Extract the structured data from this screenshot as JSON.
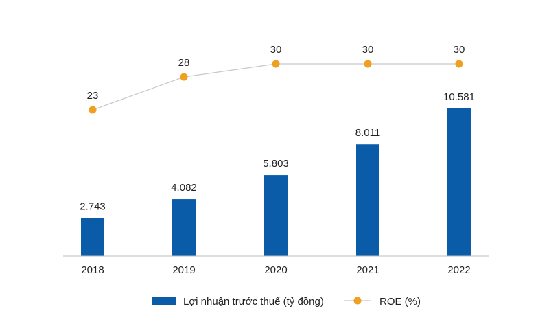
{
  "chart_data": {
    "type": "bar+line",
    "categories": [
      "2018",
      "2019",
      "2020",
      "2021",
      "2022"
    ],
    "series": [
      {
        "name": "Lợi nhuận trước thuế (tỷ đồng)",
        "type": "bar",
        "values": [
          2743,
          4082,
          5803,
          8011,
          10581
        ],
        "labels": [
          "2.743",
          "4.082",
          "5.803",
          "8.011",
          "10.581"
        ],
        "color": "#0a5ca8"
      },
      {
        "name": "ROE (%)",
        "type": "line",
        "values": [
          23,
          28,
          30,
          30,
          30
        ],
        "labels": [
          "23",
          "28",
          "30",
          "30",
          "30"
        ],
        "color": "#f0a020",
        "line_color": "#c8c8c8"
      }
    ],
    "legend": "bottom",
    "grid": false
  }
}
